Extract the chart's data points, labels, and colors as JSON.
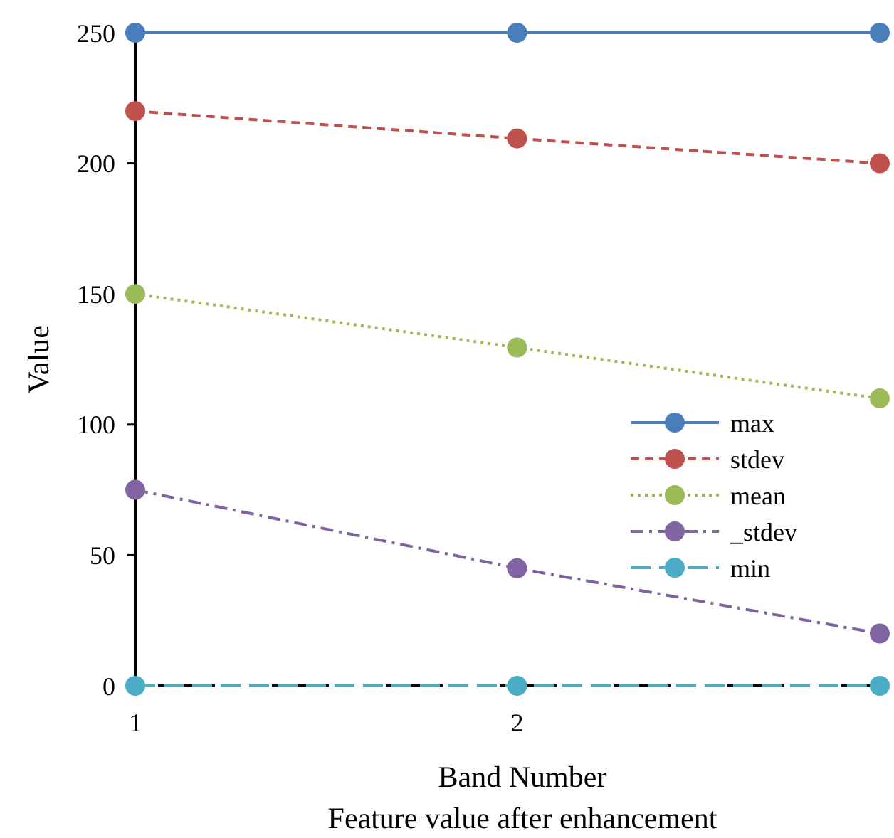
{
  "chart_data": {
    "type": "line",
    "xlabel": "Band Number",
    "annotations": [
      "Feature value after enhancement"
    ],
    "ylabel": "Value",
    "xlim": [
      1,
      2.95
    ],
    "xticks": [
      1,
      2
    ],
    "ylim": [
      0,
      250
    ],
    "yticks": [
      0,
      50,
      100,
      150,
      200,
      250
    ],
    "legend": "right",
    "marker": "circle",
    "grid": false,
    "series": [
      {
        "name": "max",
        "color": "#4a7ebb",
        "x": [
          1,
          2,
          2.95
        ],
        "values": [
          250,
          250,
          250
        ],
        "line_style": "solid"
      },
      {
        "name": "stdev",
        "color": "#c0504d",
        "x": [
          1,
          2,
          2.95
        ],
        "values": [
          220,
          209.5,
          200
        ],
        "line_style": "dashed"
      },
      {
        "name": "mean",
        "color": "#9bbb59",
        "x": [
          1,
          2,
          2.95
        ],
        "values": [
          150,
          129.5,
          110
        ],
        "line_style": "dotted"
      },
      {
        "name": "_stdev",
        "color": "#8064a2",
        "x": [
          1,
          2,
          2.95
        ],
        "values": [
          75,
          45,
          20
        ],
        "line_style": "dashdot"
      },
      {
        "name": "min",
        "color": "#4bacc6",
        "x": [
          1,
          2,
          2.95
        ],
        "values": [
          0,
          0,
          0
        ],
        "line_style": "longdash"
      }
    ]
  }
}
